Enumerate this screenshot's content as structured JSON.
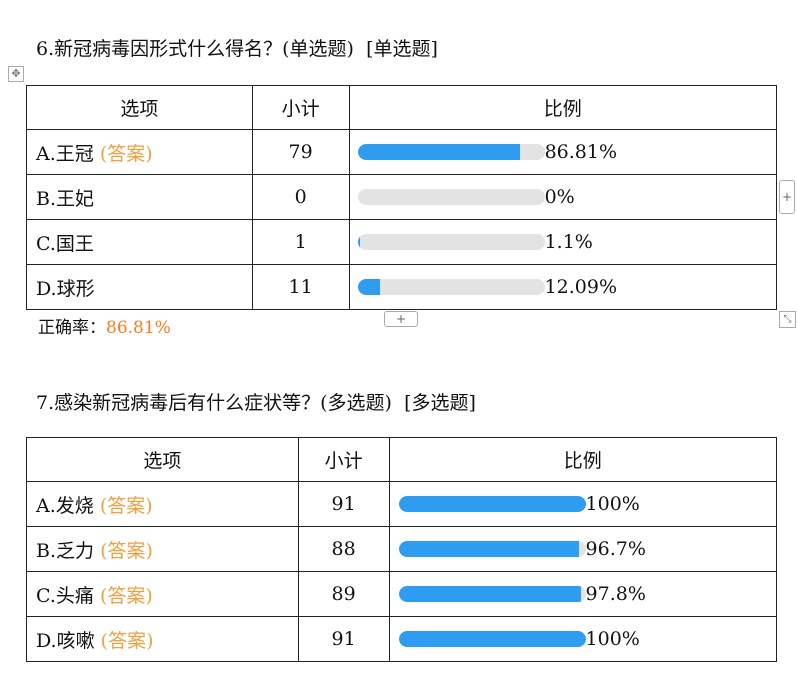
{
  "q6": {
    "title": "6.新冠病毒因形式什么得名？(单选题)",
    "type_tag": "[单选题]",
    "headers": {
      "option": "选项",
      "count": "小计",
      "ratio": "比例"
    },
    "answer_tag": "(答案)",
    "rows": [
      {
        "label": "A.王冠",
        "is_answer": true,
        "count": "79",
        "percent": "86.81%",
        "fraction": 0.8681
      },
      {
        "label": "B.王妃",
        "is_answer": false,
        "count": "0",
        "percent": "0%",
        "fraction": 0
      },
      {
        "label": "C.国王",
        "is_answer": false,
        "count": "1",
        "percent": "1.1%",
        "fraction": 0.011
      },
      {
        "label": "D.球形",
        "is_answer": false,
        "count": "11",
        "percent": "12.09%",
        "fraction": 0.1209
      }
    ],
    "correct_rate_label": "正确率：",
    "correct_rate_value": "86.81%"
  },
  "q7": {
    "title": "7.感染新冠病毒后有什么症状等？(多选题)",
    "type_tag": "[多选题]",
    "headers": {
      "option": "选项",
      "count": "小计",
      "ratio": "比例"
    },
    "answer_tag": "(答案)",
    "rows": [
      {
        "label": "A.发烧",
        "is_answer": true,
        "count": "91",
        "percent": "100%",
        "fraction": 1.0
      },
      {
        "label": "B.乏力",
        "is_answer": true,
        "count": "88",
        "percent": "96.7%",
        "fraction": 0.967
      },
      {
        "label": "C.头痛",
        "is_answer": true,
        "count": "89",
        "percent": "97.8%",
        "fraction": 0.978
      },
      {
        "label": "D.咳嗽",
        "is_answer": true,
        "count": "91",
        "percent": "100%",
        "fraction": 1.0
      }
    ]
  },
  "editor": {
    "move_icon": "move-icon",
    "add_icon": "plus-icon",
    "resize_icon": "resize-icon",
    "plus_glyph": "+",
    "move_glyph": "✥",
    "resize_glyph": "⤡"
  },
  "colors": {
    "bar_fill": "#2e9cf0",
    "bar_track": "#e3e3e3",
    "answer_tag": "#f0a040",
    "correct_rate": "#ff7a1f"
  }
}
